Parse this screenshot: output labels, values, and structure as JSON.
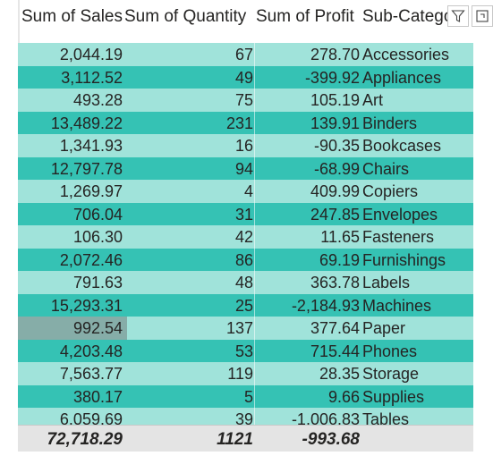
{
  "columns": {
    "sales": "Sum of Sales",
    "quantity": "Sum of Quantity",
    "profit": "Sum of Profit",
    "subcategory": "Sub-Category"
  },
  "rows": [
    {
      "sales": "2,044.19",
      "quantity": "67",
      "profit": "278.70",
      "subcategory": "Accessories"
    },
    {
      "sales": "3,112.52",
      "quantity": "49",
      "profit": "-399.92",
      "subcategory": "Appliances"
    },
    {
      "sales": "493.28",
      "quantity": "75",
      "profit": "105.19",
      "subcategory": "Art"
    },
    {
      "sales": "13,489.22",
      "quantity": "231",
      "profit": "139.91",
      "subcategory": "Binders"
    },
    {
      "sales": "1,341.93",
      "quantity": "16",
      "profit": "-90.35",
      "subcategory": "Bookcases"
    },
    {
      "sales": "12,797.78",
      "quantity": "94",
      "profit": "-68.99",
      "subcategory": "Chairs"
    },
    {
      "sales": "1,269.97",
      "quantity": "4",
      "profit": "409.99",
      "subcategory": "Copiers"
    },
    {
      "sales": "706.04",
      "quantity": "31",
      "profit": "247.85",
      "subcategory": "Envelopes"
    },
    {
      "sales": "106.30",
      "quantity": "42",
      "profit": "11.65",
      "subcategory": "Fasteners"
    },
    {
      "sales": "2,072.46",
      "quantity": "86",
      "profit": "69.19",
      "subcategory": "Furnishings"
    },
    {
      "sales": "791.63",
      "quantity": "48",
      "profit": "363.78",
      "subcategory": "Labels"
    },
    {
      "sales": "15,293.31",
      "quantity": "25",
      "profit": "-2,184.93",
      "subcategory": "Machines"
    },
    {
      "sales": "992.54",
      "quantity": "137",
      "profit": "377.64",
      "subcategory": "Paper"
    },
    {
      "sales": "4,203.48",
      "quantity": "53",
      "profit": "715.44",
      "subcategory": "Phones"
    },
    {
      "sales": "7,563.77",
      "quantity": "119",
      "profit": "28.35",
      "subcategory": "Storage"
    },
    {
      "sales": "380.17",
      "quantity": "5",
      "profit": "9.66",
      "subcategory": "Supplies"
    },
    {
      "sales": "6,059.69",
      "quantity": "39",
      "profit": "-1,006.83",
      "subcategory": "Tables"
    }
  ],
  "totals": {
    "sales": "72,718.29",
    "quantity": "1121",
    "profit": "-993.68"
  },
  "icons": [
    "filter-icon",
    "focus-mode-icon"
  ],
  "colors": {
    "row_light": "#a0e3da",
    "row_dark": "#35c2b4",
    "highlight_cell": "#86ada8",
    "total_bg": "#e4e4e4"
  }
}
